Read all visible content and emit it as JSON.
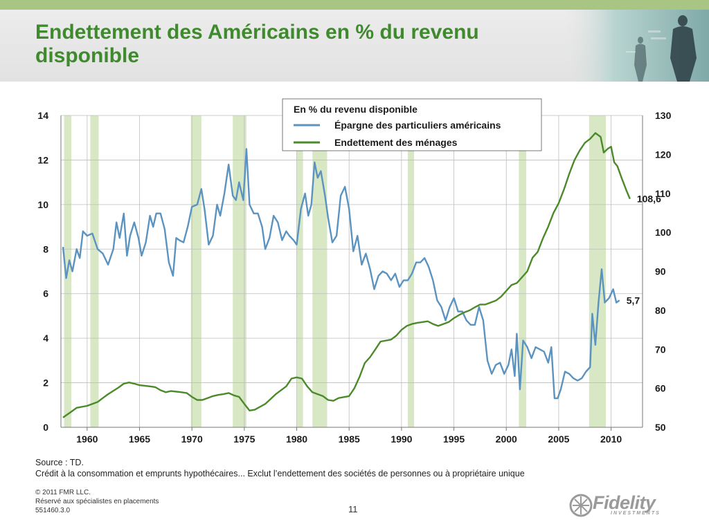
{
  "slide": {
    "title": "Endettement des Américains en % du revenu disponible",
    "page_number": "11",
    "source_line1": "Source : TD.",
    "source_line2": "Crédit à la consommation et emprunts hypothécaires... Exclut l’endettement des sociétés de personnes ou à propriétaire unique",
    "legal_line1": "© 2011 FMR LLC.",
    "legal_line2": "Réservé aux spécialistes en placements",
    "legal_line3": "551460.3.0",
    "logo_text": "Fidelity",
    "logo_subtext": "INVESTMENTS",
    "colors": {
      "title": "#3f8a2d",
      "top_stripe": "#a9c584",
      "header_band": "#e6e6e6"
    }
  },
  "chart_data": {
    "type": "line",
    "legend_title": "En % du revenu disponible",
    "legend_position": "top-center",
    "grid": true,
    "x_range": [
      1957.5,
      2013
    ],
    "x_ticks": [
      1960,
      1965,
      1970,
      1975,
      1980,
      1985,
      1990,
      1995,
      2000,
      2005,
      2010
    ],
    "y_left": {
      "range": [
        0,
        14
      ],
      "ticks": [
        0,
        2,
        4,
        6,
        8,
        10,
        12,
        14
      ]
    },
    "y_right": {
      "range": [
        50,
        130
      ],
      "ticks": [
        50,
        60,
        70,
        80,
        90,
        100,
        110,
        120,
        130
      ]
    },
    "recessions": [
      [
        1957.8,
        1958.5
      ],
      [
        1960.3,
        1961.1
      ],
      [
        1969.9,
        1970.9
      ],
      [
        1973.9,
        1975.2
      ],
      [
        1980.0,
        1980.6
      ],
      [
        1981.5,
        1982.9
      ],
      [
        1990.6,
        1991.2
      ],
      [
        2001.2,
        2001.9
      ],
      [
        2007.9,
        2009.5
      ]
    ],
    "series": [
      {
        "name": "Épargne des particuliers américains",
        "axis": "left",
        "color": "#5b93c0",
        "end_label": "5,7",
        "points": [
          [
            1957.7,
            8.1
          ],
          [
            1958.0,
            6.7
          ],
          [
            1958.3,
            7.5
          ],
          [
            1958.6,
            7.0
          ],
          [
            1959.0,
            8.0
          ],
          [
            1959.3,
            7.6
          ],
          [
            1959.6,
            8.8
          ],
          [
            1960.0,
            8.6
          ],
          [
            1960.5,
            8.7
          ],
          [
            1961.0,
            8.0
          ],
          [
            1961.5,
            7.8
          ],
          [
            1962.0,
            7.3
          ],
          [
            1962.5,
            8.0
          ],
          [
            1962.8,
            9.2
          ],
          [
            1963.1,
            8.5
          ],
          [
            1963.5,
            9.6
          ],
          [
            1963.8,
            7.7
          ],
          [
            1964.1,
            8.6
          ],
          [
            1964.5,
            9.2
          ],
          [
            1964.9,
            8.5
          ],
          [
            1965.2,
            7.7
          ],
          [
            1965.6,
            8.3
          ],
          [
            1966.0,
            9.5
          ],
          [
            1966.3,
            9.0
          ],
          [
            1966.6,
            9.6
          ],
          [
            1967.0,
            9.6
          ],
          [
            1967.4,
            8.9
          ],
          [
            1967.8,
            7.4
          ],
          [
            1968.2,
            6.8
          ],
          [
            1968.5,
            8.5
          ],
          [
            1968.8,
            8.4
          ],
          [
            1969.2,
            8.3
          ],
          [
            1969.6,
            9.0
          ],
          [
            1970.0,
            9.9
          ],
          [
            1970.5,
            10.0
          ],
          [
            1970.9,
            10.7
          ],
          [
            1971.2,
            9.8
          ],
          [
            1971.6,
            8.2
          ],
          [
            1972.0,
            8.6
          ],
          [
            1972.4,
            10.0
          ],
          [
            1972.7,
            9.5
          ],
          [
            1973.1,
            10.5
          ],
          [
            1973.5,
            11.8
          ],
          [
            1973.9,
            10.4
          ],
          [
            1974.2,
            10.2
          ],
          [
            1974.5,
            11.0
          ],
          [
            1974.9,
            10.2
          ],
          [
            1975.2,
            12.5
          ],
          [
            1975.5,
            10.0
          ],
          [
            1975.9,
            9.6
          ],
          [
            1976.3,
            9.6
          ],
          [
            1976.7,
            9.0
          ],
          [
            1977.0,
            8.0
          ],
          [
            1977.4,
            8.5
          ],
          [
            1977.8,
            9.5
          ],
          [
            1978.2,
            9.2
          ],
          [
            1978.6,
            8.4
          ],
          [
            1979.0,
            8.8
          ],
          [
            1979.3,
            8.6
          ],
          [
            1979.7,
            8.4
          ],
          [
            1980.0,
            8.2
          ],
          [
            1980.4,
            9.8
          ],
          [
            1980.8,
            10.5
          ],
          [
            1981.1,
            9.5
          ],
          [
            1981.4,
            10.0
          ],
          [
            1981.7,
            11.9
          ],
          [
            1982.0,
            11.2
          ],
          [
            1982.3,
            11.5
          ],
          [
            1982.7,
            10.4
          ],
          [
            1983.0,
            9.4
          ],
          [
            1983.4,
            8.3
          ],
          [
            1983.8,
            8.6
          ],
          [
            1984.2,
            10.4
          ],
          [
            1984.6,
            10.8
          ],
          [
            1985.0,
            9.8
          ],
          [
            1985.4,
            7.9
          ],
          [
            1985.8,
            8.6
          ],
          [
            1986.2,
            7.3
          ],
          [
            1986.6,
            7.8
          ],
          [
            1987.0,
            7.1
          ],
          [
            1987.4,
            6.2
          ],
          [
            1987.8,
            6.8
          ],
          [
            1988.2,
            7.0
          ],
          [
            1988.6,
            6.9
          ],
          [
            1989.0,
            6.6
          ],
          [
            1989.4,
            6.9
          ],
          [
            1989.8,
            6.3
          ],
          [
            1990.2,
            6.6
          ],
          [
            1990.6,
            6.6
          ],
          [
            1991.0,
            6.9
          ],
          [
            1991.4,
            7.4
          ],
          [
            1991.8,
            7.4
          ],
          [
            1992.2,
            7.6
          ],
          [
            1992.6,
            7.2
          ],
          [
            1993.0,
            6.6
          ],
          [
            1993.4,
            5.7
          ],
          [
            1993.8,
            5.4
          ],
          [
            1994.2,
            4.8
          ],
          [
            1994.6,
            5.4
          ],
          [
            1995.0,
            5.8
          ],
          [
            1995.4,
            5.2
          ],
          [
            1995.8,
            5.2
          ],
          [
            1996.2,
            4.8
          ],
          [
            1996.6,
            4.6
          ],
          [
            1997.0,
            4.6
          ],
          [
            1997.4,
            5.4
          ],
          [
            1997.8,
            4.8
          ],
          [
            1998.2,
            3.0
          ],
          [
            1998.6,
            2.4
          ],
          [
            1999.0,
            2.8
          ],
          [
            1999.4,
            2.9
          ],
          [
            1999.8,
            2.4
          ],
          [
            2000.2,
            2.8
          ],
          [
            2000.5,
            3.5
          ],
          [
            2000.8,
            2.3
          ],
          [
            2001.0,
            4.2
          ],
          [
            2001.3,
            1.7
          ],
          [
            2001.6,
            3.9
          ],
          [
            2002.0,
            3.6
          ],
          [
            2002.4,
            3.1
          ],
          [
            2002.8,
            3.6
          ],
          [
            2003.2,
            3.5
          ],
          [
            2003.6,
            3.4
          ],
          [
            2004.0,
            2.9
          ],
          [
            2004.3,
            3.6
          ],
          [
            2004.6,
            1.3
          ],
          [
            2004.9,
            1.3
          ],
          [
            2005.2,
            1.7
          ],
          [
            2005.6,
            2.5
          ],
          [
            2006.0,
            2.4
          ],
          [
            2006.4,
            2.2
          ],
          [
            2006.8,
            2.1
          ],
          [
            2007.2,
            2.2
          ],
          [
            2007.6,
            2.5
          ],
          [
            2008.0,
            2.7
          ],
          [
            2008.2,
            5.1
          ],
          [
            2008.5,
            3.7
          ],
          [
            2008.8,
            5.6
          ],
          [
            2009.1,
            7.1
          ],
          [
            2009.4,
            5.6
          ],
          [
            2009.8,
            5.8
          ],
          [
            2010.2,
            6.2
          ],
          [
            2010.5,
            5.6
          ],
          [
            2010.8,
            5.7
          ]
        ]
      },
      {
        "name": "Endettement des ménages",
        "axis": "right",
        "color": "#4a8a2a",
        "end_label": "108,6",
        "points": [
          [
            1957.7,
            52.5
          ],
          [
            1958.5,
            54.0
          ],
          [
            1959.0,
            55.0
          ],
          [
            1960.0,
            55.5
          ],
          [
            1961.0,
            56.5
          ],
          [
            1961.5,
            57.5
          ],
          [
            1962.0,
            58.5
          ],
          [
            1963.0,
            60.2
          ],
          [
            1963.5,
            61.2
          ],
          [
            1964.0,
            61.5
          ],
          [
            1964.5,
            61.2
          ],
          [
            1965.0,
            60.8
          ],
          [
            1966.0,
            60.5
          ],
          [
            1966.5,
            60.3
          ],
          [
            1967.0,
            59.5
          ],
          [
            1967.5,
            59.0
          ],
          [
            1968.0,
            59.3
          ],
          [
            1969.0,
            59.0
          ],
          [
            1969.5,
            58.8
          ],
          [
            1970.0,
            57.8
          ],
          [
            1970.5,
            57.0
          ],
          [
            1971.0,
            57.0
          ],
          [
            1971.5,
            57.5
          ],
          [
            1972.0,
            58.0
          ],
          [
            1972.5,
            58.3
          ],
          [
            1973.0,
            58.5
          ],
          [
            1973.5,
            58.8
          ],
          [
            1974.0,
            58.2
          ],
          [
            1974.5,
            57.8
          ],
          [
            1975.0,
            56.0
          ],
          [
            1975.5,
            54.3
          ],
          [
            1976.0,
            54.5
          ],
          [
            1977.0,
            56.0
          ],
          [
            1978.0,
            58.5
          ],
          [
            1979.0,
            60.5
          ],
          [
            1979.5,
            62.5
          ],
          [
            1980.0,
            62.8
          ],
          [
            1980.5,
            62.5
          ],
          [
            1981.0,
            60.5
          ],
          [
            1981.5,
            59.0
          ],
          [
            1982.0,
            58.5
          ],
          [
            1982.5,
            58.0
          ],
          [
            1983.0,
            57.0
          ],
          [
            1983.5,
            56.8
          ],
          [
            1984.0,
            57.5
          ],
          [
            1985.0,
            58.0
          ],
          [
            1985.5,
            60.0
          ],
          [
            1986.0,
            63.0
          ],
          [
            1986.5,
            66.5
          ],
          [
            1987.0,
            68.0
          ],
          [
            1987.5,
            70.0
          ],
          [
            1988.0,
            72.0
          ],
          [
            1989.0,
            72.5
          ],
          [
            1989.5,
            73.5
          ],
          [
            1990.0,
            75.0
          ],
          [
            1990.5,
            76.0
          ],
          [
            1991.0,
            76.5
          ],
          [
            1991.5,
            76.8
          ],
          [
            1992.0,
            77.0
          ],
          [
            1992.5,
            77.2
          ],
          [
            1993.0,
            76.5
          ],
          [
            1993.5,
            76.0
          ],
          [
            1994.0,
            76.5
          ],
          [
            1994.5,
            77.0
          ],
          [
            1995.0,
            78.0
          ],
          [
            1995.5,
            78.8
          ],
          [
            1996.0,
            79.5
          ],
          [
            1996.5,
            80.0
          ],
          [
            1997.0,
            80.8
          ],
          [
            1997.5,
            81.5
          ],
          [
            1998.0,
            81.5
          ],
          [
            1998.5,
            82.0
          ],
          [
            1999.0,
            82.5
          ],
          [
            1999.5,
            83.5
          ],
          [
            2000.0,
            85.0
          ],
          [
            2000.5,
            86.5
          ],
          [
            2001.0,
            87.0
          ],
          [
            2001.5,
            88.5
          ],
          [
            2002.0,
            90.0
          ],
          [
            2002.5,
            93.5
          ],
          [
            2003.0,
            95.0
          ],
          [
            2003.5,
            98.5
          ],
          [
            2004.0,
            101.5
          ],
          [
            2004.5,
            105.0
          ],
          [
            2005.0,
            107.5
          ],
          [
            2005.5,
            111.0
          ],
          [
            2006.0,
            115.0
          ],
          [
            2006.5,
            118.5
          ],
          [
            2007.0,
            121.0
          ],
          [
            2007.5,
            123.0
          ],
          [
            2008.0,
            124.0
          ],
          [
            2008.5,
            125.5
          ],
          [
            2009.0,
            124.5
          ],
          [
            2009.3,
            120.5
          ],
          [
            2009.7,
            121.5
          ],
          [
            2010.0,
            122.0
          ],
          [
            2010.3,
            118.0
          ],
          [
            2010.6,
            117.0
          ],
          [
            2011.0,
            114.0
          ],
          [
            2011.5,
            110.5
          ],
          [
            2011.8,
            108.6
          ]
        ]
      }
    ]
  }
}
